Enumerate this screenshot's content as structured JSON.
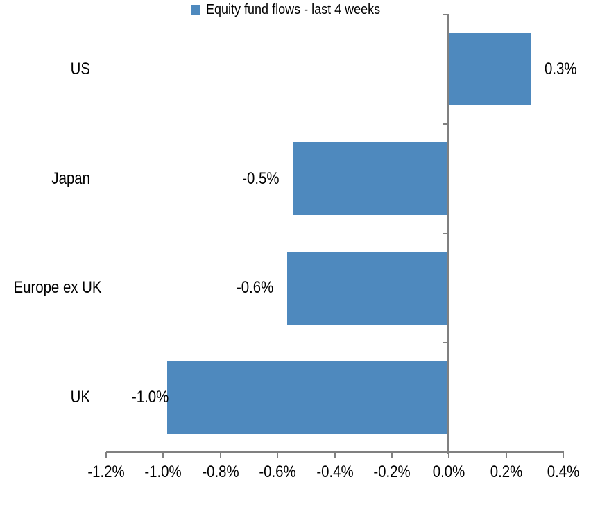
{
  "chart_data": {
    "type": "bar",
    "orientation": "horizontal",
    "categories": [
      "US",
      "Japan",
      "Europe ex UK",
      "UK"
    ],
    "values": [
      0.3,
      -0.5,
      -0.6,
      -1.0
    ],
    "data_labels": [
      "0.3%",
      "-0.5%",
      "-0.6%",
      "-1.0%"
    ],
    "bar_lengths_precise": [
      0.29,
      -0.545,
      -0.565,
      -0.985
    ],
    "unit": "percent",
    "xlim": [
      -1.2,
      0.4
    ],
    "x_tick_step": 0.2,
    "x_tick_labels": [
      "-1.2%",
      "-1.0%",
      "-0.8%",
      "-0.6%",
      "-0.4%",
      "-0.2%",
      "0.0%",
      "0.2%",
      "0.4%"
    ],
    "grid": false,
    "value_axis_crosses_at": 0.0,
    "legend": {
      "position": "bottom-center",
      "label": "Equity fund flows - last 4 weeks"
    },
    "colors": {
      "bar": "#4E89BE",
      "axis": "#808080",
      "text": "#000000",
      "background": "#FFFFFF"
    }
  }
}
